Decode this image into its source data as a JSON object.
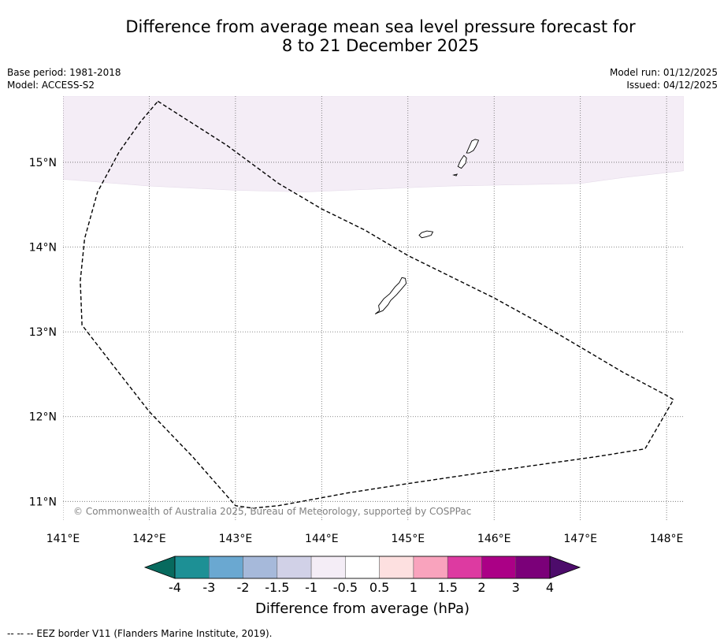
{
  "title": {
    "line1": "Difference from average mean sea level pressure forecast for",
    "line2": "8 to 21 December 2025"
  },
  "meta_left": {
    "base_period": "Base period: 1981-2018",
    "model": "Model: ACCESS-S2"
  },
  "meta_right": {
    "model_run": "Model run: 01/12/2025",
    "issued": "Issued: 04/12/2025"
  },
  "map": {
    "lon_range": [
      141.0,
      148.2
    ],
    "lat_range": [
      10.78,
      15.78
    ],
    "lon_ticks": [
      {
        "value": 141,
        "label": "141°E"
      },
      {
        "value": 142,
        "label": "142°E"
      },
      {
        "value": 143,
        "label": "143°E"
      },
      {
        "value": 144,
        "label": "144°E"
      },
      {
        "value": 145,
        "label": "145°E"
      },
      {
        "value": 146,
        "label": "146°E"
      },
      {
        "value": 147,
        "label": "147°E"
      },
      {
        "value": 148,
        "label": "148°E"
      }
    ],
    "lat_ticks": [
      {
        "value": 11,
        "label": "11°N"
      },
      {
        "value": 12,
        "label": "12°N"
      },
      {
        "value": 13,
        "label": "13°N"
      },
      {
        "value": 14,
        "label": "14°N"
      },
      {
        "value": 15,
        "label": "15°N"
      }
    ],
    "anomaly_region": {
      "category": "-1 to -0.5",
      "color": "#f4edf6",
      "southern_boundary": [
        [
          141.0,
          14.8
        ],
        [
          142.0,
          14.72
        ],
        [
          143.0,
          14.67
        ],
        [
          143.8,
          14.65
        ],
        [
          144.5,
          14.68
        ],
        [
          145.5,
          14.72
        ],
        [
          146.5,
          14.74
        ],
        [
          147.0,
          14.75
        ],
        [
          147.5,
          14.82
        ],
        [
          148.2,
          14.9
        ]
      ]
    },
    "eez_border": [
      [
        142.1,
        15.72
      ],
      [
        142.9,
        15.2
      ],
      [
        143.5,
        14.75
      ],
      [
        144.0,
        14.45
      ],
      [
        144.5,
        14.2
      ],
      [
        145.0,
        13.9
      ],
      [
        145.5,
        13.65
      ],
      [
        146.0,
        13.4
      ],
      [
        146.5,
        13.12
      ],
      [
        147.0,
        12.82
      ],
      [
        147.5,
        12.52
      ],
      [
        148.0,
        12.25
      ],
      [
        148.08,
        12.2
      ],
      [
        147.75,
        11.62
      ],
      [
        147.2,
        11.53
      ],
      [
        146.5,
        11.43
      ],
      [
        145.8,
        11.33
      ],
      [
        145.0,
        11.21
      ],
      [
        144.3,
        11.1
      ],
      [
        143.5,
        10.95
      ],
      [
        143.2,
        10.92
      ],
      [
        143.0,
        10.95
      ],
      [
        142.5,
        11.53
      ],
      [
        142.0,
        12.06
      ],
      [
        141.6,
        12.58
      ],
      [
        141.22,
        13.08
      ],
      [
        141.2,
        13.6
      ],
      [
        141.25,
        14.1
      ],
      [
        141.4,
        14.65
      ],
      [
        141.65,
        15.12
      ],
      [
        141.9,
        15.48
      ],
      [
        142.1,
        15.72
      ]
    ],
    "islands": [
      {
        "name": "Guam",
        "outline": [
          [
            144.62,
            13.21
          ],
          [
            144.67,
            13.25
          ],
          [
            144.66,
            13.31
          ],
          [
            144.72,
            13.39
          ],
          [
            144.79,
            13.45
          ],
          [
            144.85,
            13.53
          ],
          [
            144.9,
            13.58
          ],
          [
            144.93,
            13.64
          ],
          [
            144.97,
            13.63
          ],
          [
            144.98,
            13.57
          ],
          [
            144.93,
            13.51
          ],
          [
            144.87,
            13.44
          ],
          [
            144.8,
            13.37
          ],
          [
            144.77,
            13.32
          ],
          [
            144.71,
            13.25
          ],
          [
            144.66,
            13.23
          ],
          [
            144.62,
            13.21
          ]
        ]
      },
      {
        "name": "Rota",
        "outline": [
          [
            145.13,
            14.14
          ],
          [
            145.16,
            14.17
          ],
          [
            145.22,
            14.19
          ],
          [
            145.29,
            14.18
          ],
          [
            145.27,
            14.14
          ],
          [
            145.21,
            14.12
          ],
          [
            145.16,
            14.11
          ],
          [
            145.13,
            14.14
          ]
        ]
      },
      {
        "name": "Tinian",
        "outline": [
          [
            145.58,
            14.95
          ],
          [
            145.61,
            15.02
          ],
          [
            145.65,
            15.08
          ],
          [
            145.68,
            15.05
          ],
          [
            145.67,
            14.99
          ],
          [
            145.62,
            14.93
          ],
          [
            145.58,
            14.95
          ]
        ]
      },
      {
        "name": "Saipan",
        "outline": [
          [
            145.68,
            15.11
          ],
          [
            145.71,
            15.18
          ],
          [
            145.74,
            15.25
          ],
          [
            145.78,
            15.27
          ],
          [
            145.82,
            15.26
          ],
          [
            145.79,
            15.19
          ],
          [
            145.76,
            15.14
          ],
          [
            145.71,
            15.11
          ],
          [
            145.68,
            15.11
          ]
        ]
      },
      {
        "name": "Aguijan",
        "outline": [
          [
            145.53,
            14.85
          ],
          [
            145.57,
            14.86
          ],
          [
            145.56,
            14.84
          ],
          [
            145.53,
            14.85
          ]
        ]
      }
    ],
    "copyright": "© Commonwealth of Australia 2025, Bureau of Meteorology, supported by COSPPac"
  },
  "colorbar": {
    "title": "Difference from average (hPa)",
    "labels": [
      "-4",
      "-3",
      "-2",
      "-1.5",
      "-1",
      "-0.5",
      "0.5",
      "1",
      "1.5",
      "2",
      "3",
      "4"
    ],
    "low_extend_color": "#076a5e",
    "high_extend_color": "#4d0c6b",
    "colors": [
      "#1d9095",
      "#6aa8d1",
      "#a6b9da",
      "#d1d1e7",
      "#f4edf6",
      "#ffffff",
      "#fde0e0",
      "#f9a3bd",
      "#dd3aa1",
      "#ab0086",
      "#7b0079"
    ]
  },
  "footnote": "--  --  -- EEZ border V11 (Flanders Marine Institute, 2019)."
}
